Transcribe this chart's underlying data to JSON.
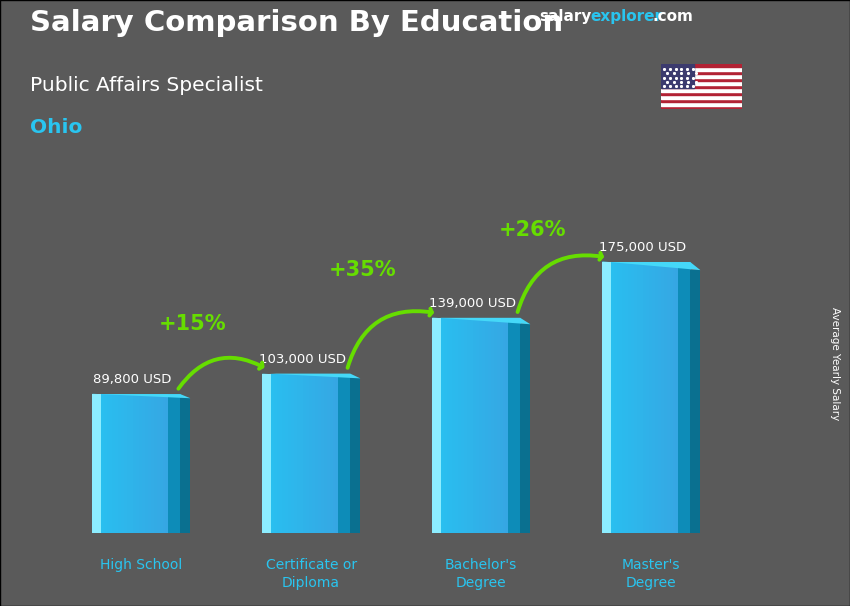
{
  "title": "Salary Comparison By Education",
  "subtitle": "Public Affairs Specialist",
  "location": "Ohio",
  "categories": [
    "High School",
    "Certificate or\nDiploma",
    "Bachelor's\nDegree",
    "Master's\nDegree"
  ],
  "values": [
    89800,
    103000,
    139000,
    175000
  ],
  "value_labels": [
    "89,800 USD",
    "103,000 USD",
    "139,000 USD",
    "175,000 USD"
  ],
  "pct_labels": [
    "+15%",
    "+35%",
    "+26%"
  ],
  "bar_color_main": "#29c5f0",
  "bar_color_light": "#55d8f8",
  "bar_color_dark": "#0a8ab0",
  "bar_color_mid": "#1aadd4",
  "bg_color": "#555555",
  "text_color_white": "#ffffff",
  "text_color_cyan": "#29c5f0",
  "text_color_green": "#66dd00",
  "ylabel": "Average Yearly Salary",
  "ylim": [
    0,
    215000
  ],
  "brand_salary_color": "#ffffff",
  "brand_explorer_color": "#29c5f0",
  "brand_com_color": "#ffffff"
}
